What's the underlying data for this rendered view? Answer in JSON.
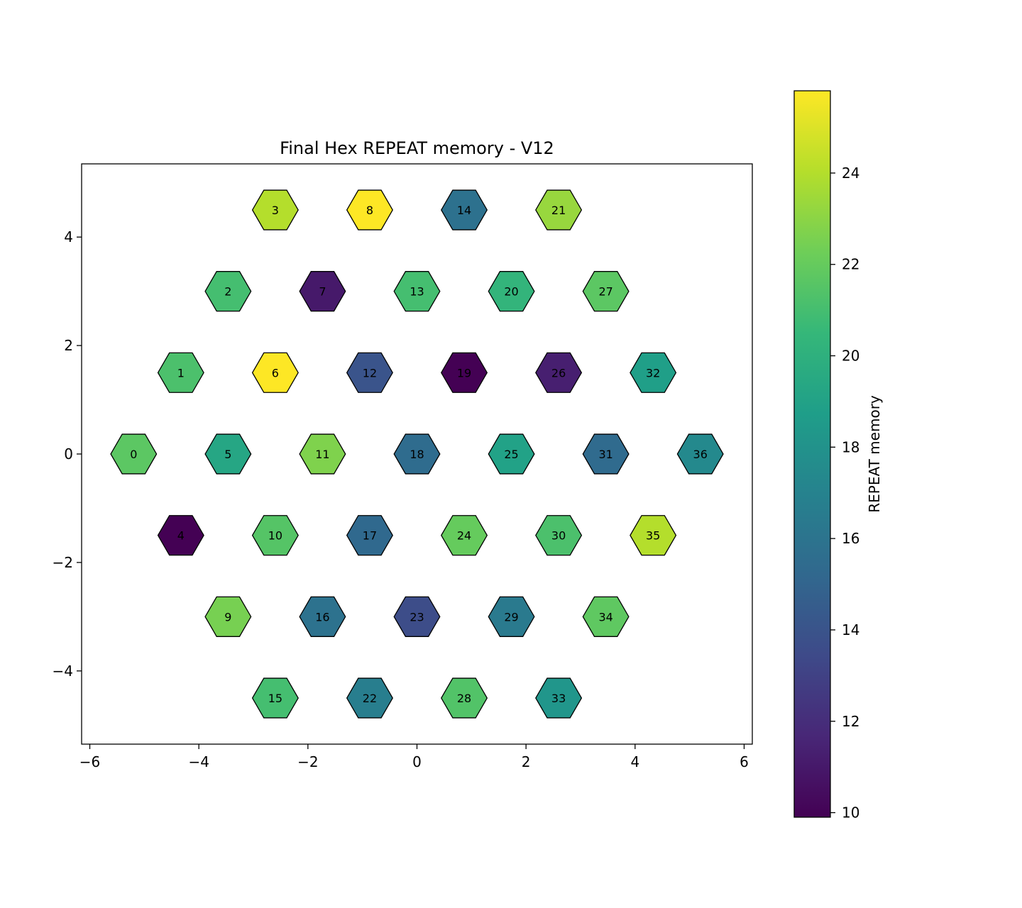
{
  "chart_data": {
    "type": "heatmap",
    "subtype": "hexagonal-grid",
    "title": "Final Hex REPEAT memory - V12",
    "xlabel": "",
    "ylabel": "",
    "xlim": [
      -6.15,
      6.15
    ],
    "ylim": [
      -5.35,
      5.35
    ],
    "x_ticks": [
      -6,
      -4,
      -2,
      0,
      2,
      4,
      6
    ],
    "x_tick_labels": [
      "−6",
      "−4",
      "−2",
      "0",
      "2",
      "4",
      "6"
    ],
    "y_ticks": [
      -4,
      -2,
      0,
      2,
      4
    ],
    "y_tick_labels": [
      "−4",
      "−2",
      "0",
      "2",
      "4"
    ],
    "grid": false,
    "colormap": "viridis",
    "colorbar": {
      "label": "REPEAT memory",
      "vmin": 9.9,
      "vmax": 25.8,
      "ticks": [
        10,
        12,
        14,
        16,
        18,
        20,
        22,
        24
      ],
      "tick_labels": [
        "10",
        "12",
        "14",
        "16",
        "18",
        "20",
        "22",
        "24"
      ]
    },
    "cells": [
      {
        "id": "0",
        "x": -5.196,
        "y": 0.0,
        "value": 21.7
      },
      {
        "id": "1",
        "x": -4.33,
        "y": 1.5,
        "value": 21.2
      },
      {
        "id": "2",
        "x": -3.464,
        "y": 3.0,
        "value": 21.0
      },
      {
        "id": "3",
        "x": -2.598,
        "y": 4.5,
        "value": 24.0
      },
      {
        "id": "4",
        "x": -4.33,
        "y": -1.5,
        "value": 9.9
      },
      {
        "id": "5",
        "x": -3.464,
        "y": 0.0,
        "value": 19.3
      },
      {
        "id": "6",
        "x": -2.598,
        "y": 1.5,
        "value": 25.8
      },
      {
        "id": "7",
        "x": -1.732,
        "y": 3.0,
        "value": 11.0
      },
      {
        "id": "8",
        "x": -0.866,
        "y": 4.5,
        "value": 25.8
      },
      {
        "id": "9",
        "x": -3.464,
        "y": -3.0,
        "value": 22.5
      },
      {
        "id": "10",
        "x": -2.598,
        "y": -1.5,
        "value": 21.5
      },
      {
        "id": "11",
        "x": -1.732,
        "y": 0.0,
        "value": 22.7
      },
      {
        "id": "12",
        "x": -0.866,
        "y": 1.5,
        "value": 14.0
      },
      {
        "id": "13",
        "x": 0.0,
        "y": 3.0,
        "value": 21.0
      },
      {
        "id": "14",
        "x": 0.866,
        "y": 4.5,
        "value": 15.8
      },
      {
        "id": "15",
        "x": -2.598,
        "y": -4.5,
        "value": 21.0
      },
      {
        "id": "16",
        "x": -1.732,
        "y": -3.0,
        "value": 15.9
      },
      {
        "id": "17",
        "x": -0.866,
        "y": -1.5,
        "value": 15.3
      },
      {
        "id": "18",
        "x": 0.0,
        "y": 0.0,
        "value": 15.5
      },
      {
        "id": "19",
        "x": 0.866,
        "y": 1.5,
        "value": 9.9
      },
      {
        "id": "20",
        "x": 1.732,
        "y": 3.0,
        "value": 20.3
      },
      {
        "id": "21",
        "x": 2.598,
        "y": 4.5,
        "value": 23.3
      },
      {
        "id": "22",
        "x": -0.866,
        "y": -4.5,
        "value": 16.7
      },
      {
        "id": "23",
        "x": 0.0,
        "y": -3.0,
        "value": 13.6
      },
      {
        "id": "24",
        "x": 0.866,
        "y": -1.5,
        "value": 22.0
      },
      {
        "id": "25",
        "x": 1.732,
        "y": 0.0,
        "value": 19.0
      },
      {
        "id": "26",
        "x": 2.598,
        "y": 1.5,
        "value": 11.3
      },
      {
        "id": "27",
        "x": 3.464,
        "y": 3.0,
        "value": 21.7
      },
      {
        "id": "28",
        "x": 0.866,
        "y": -4.5,
        "value": 21.4
      },
      {
        "id": "29",
        "x": 1.732,
        "y": -3.0,
        "value": 16.4
      },
      {
        "id": "30",
        "x": 2.598,
        "y": -1.5,
        "value": 21.2
      },
      {
        "id": "31",
        "x": 3.464,
        "y": 0.0,
        "value": 15.4
      },
      {
        "id": "32",
        "x": 4.33,
        "y": 1.5,
        "value": 18.8
      },
      {
        "id": "33",
        "x": 2.598,
        "y": -4.5,
        "value": 18.2
      },
      {
        "id": "34",
        "x": 3.464,
        "y": -3.0,
        "value": 21.8
      },
      {
        "id": "35",
        "x": 4.33,
        "y": -1.5,
        "value": 24.0
      },
      {
        "id": "36",
        "x": 5.196,
        "y": 0.0,
        "value": 17.4
      }
    ]
  }
}
